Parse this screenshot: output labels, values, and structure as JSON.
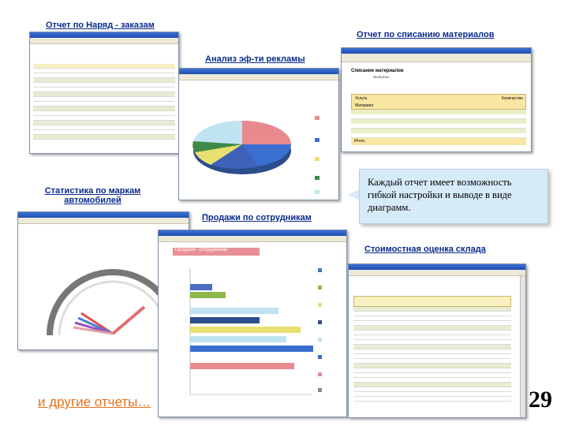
{
  "captions": {
    "orders": "Отчет по Наряд - заказам",
    "writeoff": "Отчет по списанию материалов",
    "advert": "Анализ эф-ти рекламы",
    "cars": "Статистика по маркам автомобилей",
    "sales": "Продажи по сотрудникам",
    "warehouse": "Стоимостная оценка склада"
  },
  "writeoff_window": {
    "title": "Списание материалов",
    "date": "25.05.2010",
    "table_headers": [
      "Услуга",
      "Количество",
      "Материал"
    ],
    "total_label": "Итого"
  },
  "sales_window": {
    "report_title": "Продажи - сотрудникам"
  },
  "note": "Каждый отчет имеет возможность гибкой настройки и выводе в виде диаграмм.",
  "more_reports": "и другие отчеты…",
  "page_number": "29",
  "colors": {
    "caption": "#0a2a8c",
    "note_bg": "#d6ebf8",
    "more_link": "#e8701a"
  }
}
